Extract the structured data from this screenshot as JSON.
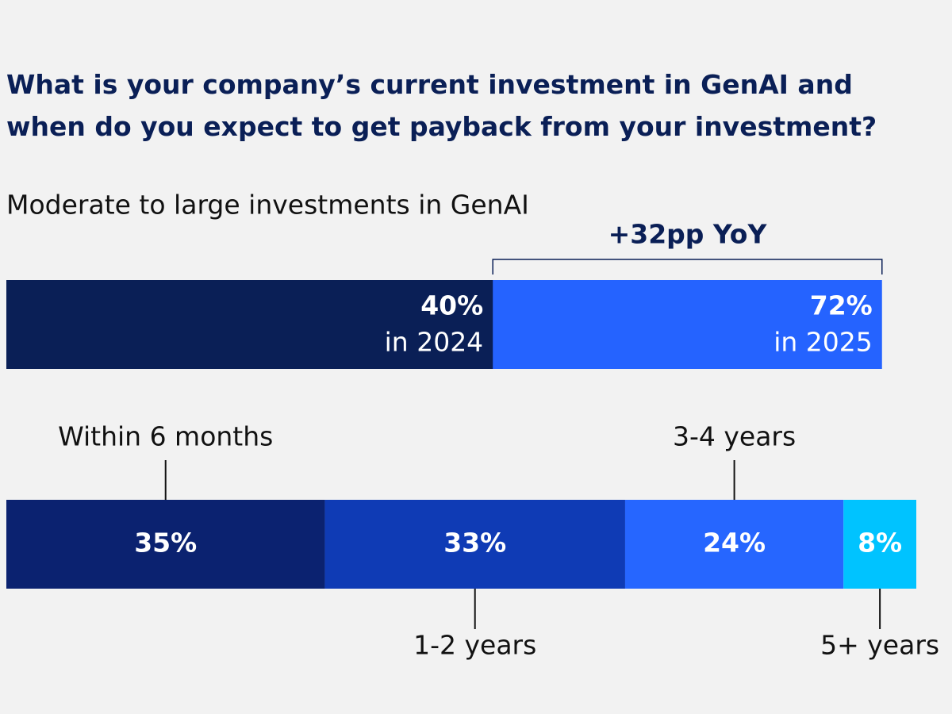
{
  "chart_data": [
    {
      "type": "overlap-bar",
      "title": "What is your company’s current investment in GenAI and when do you expect to get payback from your investment?",
      "subtitle": "Moderate to large investments in GenAI",
      "categories": [
        "in 2024",
        "in 2025"
      ],
      "values": [
        40,
        72
      ],
      "value_labels": [
        "40%",
        "72%"
      ],
      "colors": [
        "#0a1f56",
        "#2563ff"
      ],
      "annotation": "+32pp YoY"
    },
    {
      "type": "stacked-bar",
      "categories": [
        "Within 6 months",
        "1-2 years",
        "3-4 years",
        "5+ years"
      ],
      "values": [
        35,
        33,
        24,
        8
      ],
      "value_labels": [
        "35%",
        "33%",
        "24%",
        "8%"
      ],
      "colors": [
        "#0b2270",
        "#0f3bb5",
        "#2666ff",
        "#00c3ff"
      ]
    }
  ]
}
